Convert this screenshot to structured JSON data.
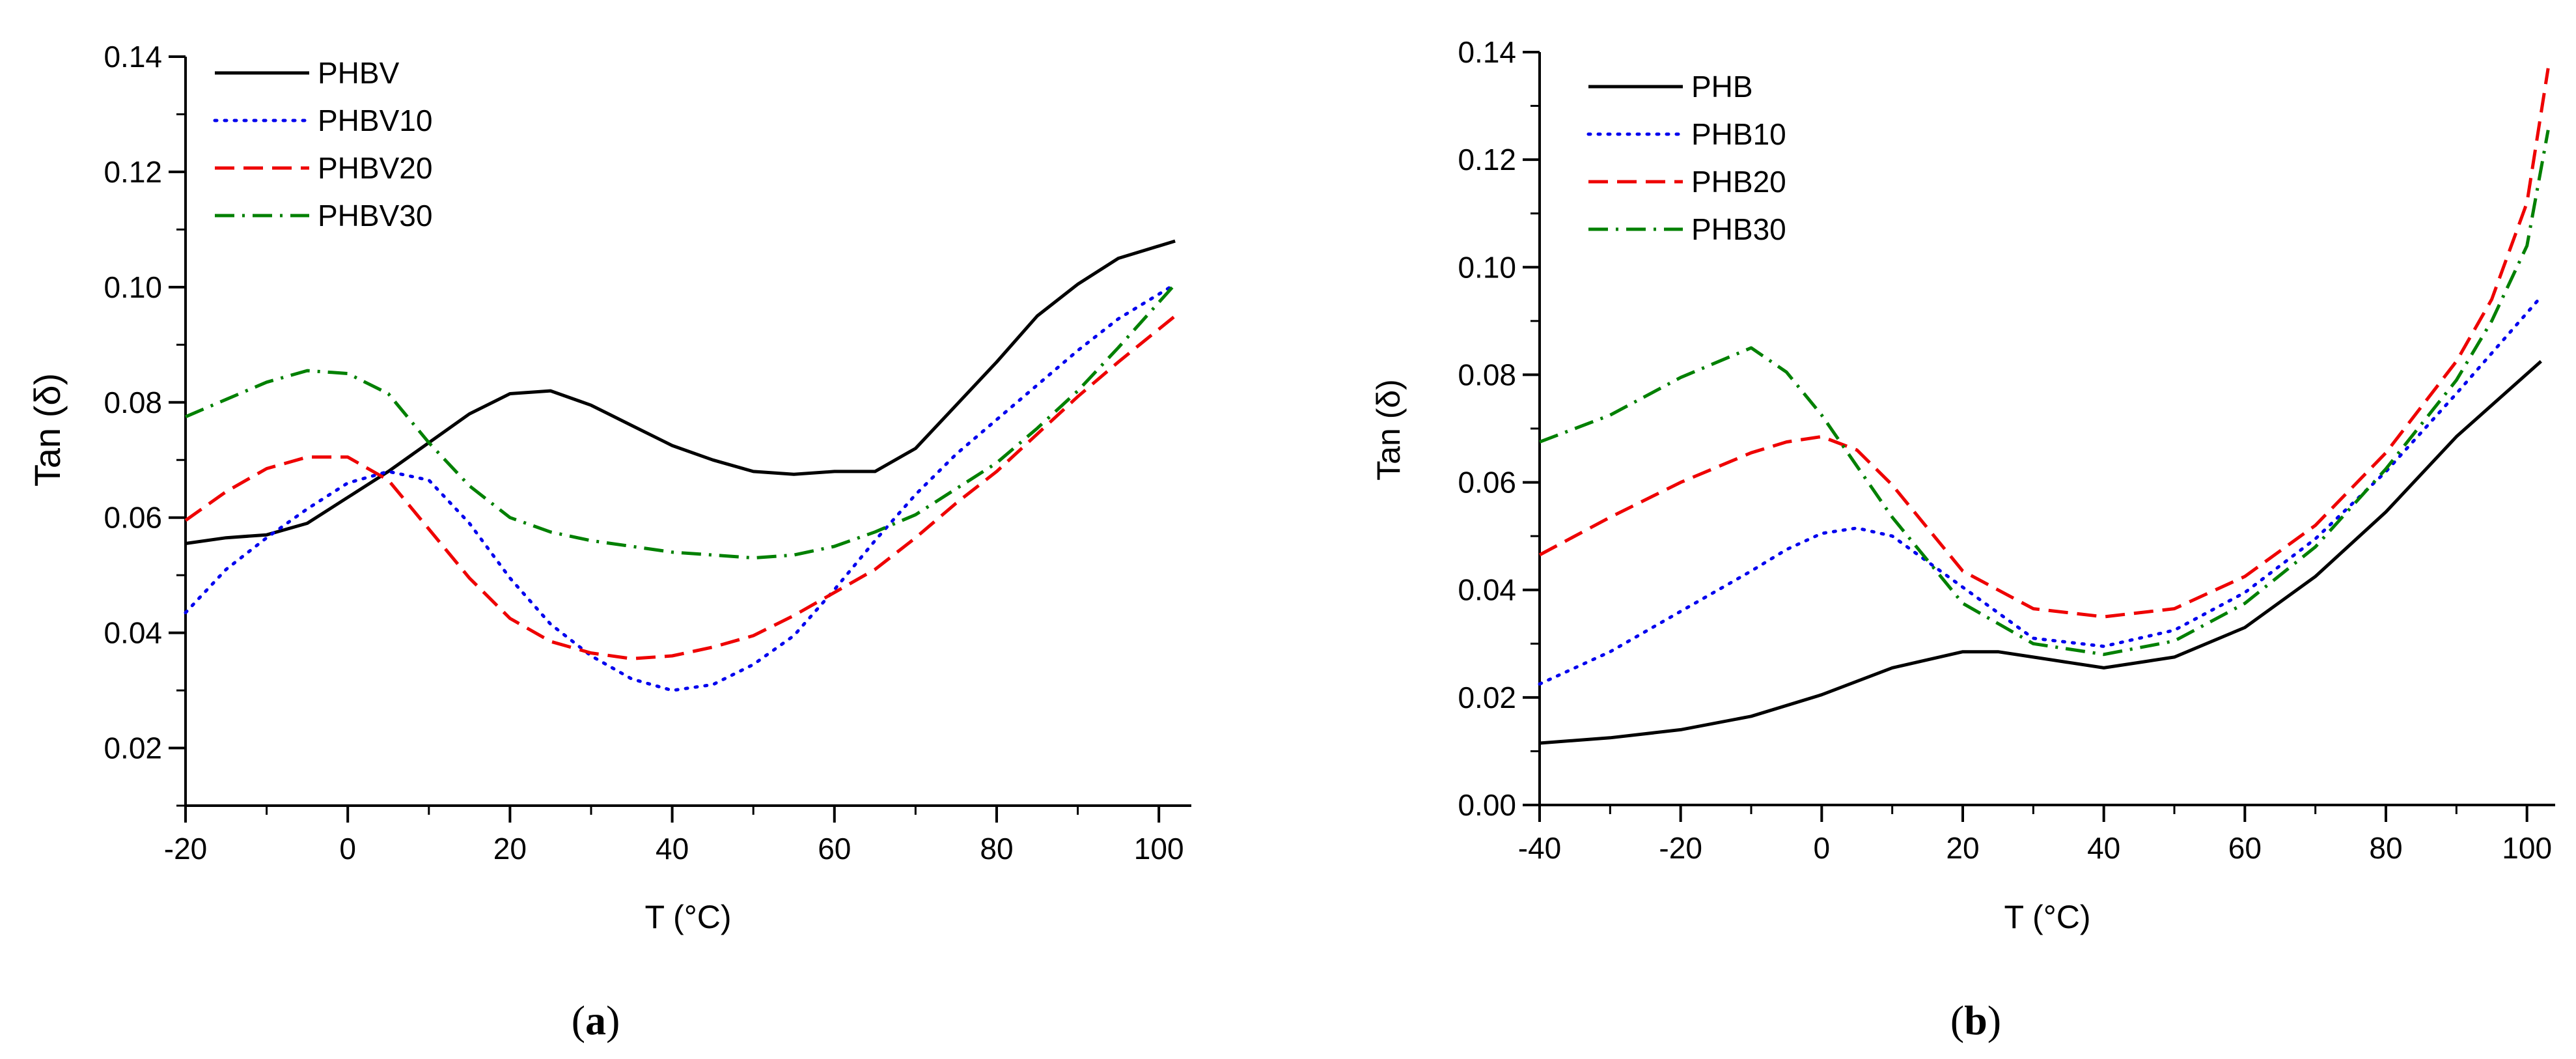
{
  "chart_data": [
    {
      "panel": "a",
      "type": "line",
      "xlabel": "T (°C)",
      "ylabel": "Tan (δ)",
      "xlim": [
        -20,
        104
      ],
      "ylim": [
        0.01,
        0.14
      ],
      "xticks": [
        -20,
        0,
        20,
        40,
        60,
        80,
        100
      ],
      "yticks": [
        0.02,
        0.04,
        0.06,
        0.08,
        0.1,
        0.12,
        0.14
      ],
      "ytick_labels": [
        "0.02",
        "0.04",
        "0.06",
        "0.08",
        "0.10",
        "0.12",
        "0.14"
      ],
      "x_minor": 10,
      "y_minor": 0.01,
      "legend_position": "top-left",
      "caption": "a",
      "series": [
        {
          "name": "PHBV",
          "color": "#000000",
          "style": "solid",
          "x": [
            -20,
            -15,
            -10,
            -5,
            0,
            5,
            10,
            15,
            20,
            25,
            30,
            35,
            40,
            45,
            50,
            55,
            60,
            65,
            70,
            75,
            80,
            85,
            90,
            95,
            102
          ],
          "y": [
            0.0555,
            0.0565,
            0.057,
            0.059,
            0.0635,
            0.068,
            0.073,
            0.078,
            0.0815,
            0.082,
            0.0795,
            0.076,
            0.0725,
            0.07,
            0.068,
            0.0675,
            0.068,
            0.068,
            0.072,
            0.0795,
            0.087,
            0.095,
            0.1005,
            0.105,
            0.108
          ]
        },
        {
          "name": "PHBV10",
          "color": "#0000ee",
          "style": "dotted",
          "x": [
            -20,
            -15,
            -10,
            -5,
            0,
            5,
            10,
            15,
            20,
            25,
            30,
            35,
            40,
            45,
            50,
            55,
            60,
            65,
            70,
            75,
            80,
            85,
            90,
            95,
            102
          ],
          "y": [
            0.0435,
            0.051,
            0.0565,
            0.0615,
            0.066,
            0.068,
            0.0665,
            0.059,
            0.0495,
            0.0415,
            0.036,
            0.032,
            0.03,
            0.031,
            0.0345,
            0.0395,
            0.0475,
            0.056,
            0.064,
            0.071,
            0.077,
            0.083,
            0.089,
            0.0945,
            0.1005
          ]
        },
        {
          "name": "PHBV20",
          "color": "#ee0000",
          "style": "dashed",
          "x": [
            -20,
            -15,
            -10,
            -5,
            0,
            5,
            10,
            15,
            20,
            25,
            30,
            35,
            40,
            45,
            50,
            55,
            60,
            65,
            70,
            75,
            80,
            85,
            90,
            95,
            102
          ],
          "y": [
            0.0595,
            0.0645,
            0.0685,
            0.0705,
            0.0705,
            0.0665,
            0.058,
            0.0495,
            0.0425,
            0.0385,
            0.0365,
            0.0355,
            0.036,
            0.0375,
            0.0395,
            0.043,
            0.047,
            0.051,
            0.0565,
            0.0625,
            0.068,
            0.0745,
            0.081,
            0.087,
            0.095
          ]
        },
        {
          "name": "PHBV30",
          "color": "#008000",
          "style": "dashdot",
          "x": [
            -20,
            -15,
            -10,
            -5,
            0,
            5,
            10,
            15,
            20,
            25,
            30,
            35,
            40,
            45,
            50,
            55,
            60,
            65,
            70,
            75,
            80,
            85,
            90,
            95,
            102
          ],
          "y": [
            0.0775,
            0.0805,
            0.0835,
            0.0855,
            0.085,
            0.0815,
            0.073,
            0.0655,
            0.06,
            0.0575,
            0.056,
            0.055,
            0.054,
            0.0535,
            0.053,
            0.0535,
            0.055,
            0.0575,
            0.0605,
            0.065,
            0.0695,
            0.0755,
            0.082,
            0.0895,
            0.1005
          ]
        }
      ]
    },
    {
      "panel": "b",
      "type": "line",
      "xlabel": "T (°C)",
      "ylabel": "Tan (δ)",
      "xlim": [
        -40,
        104
      ],
      "ylim": [
        0.0,
        0.14
      ],
      "xticks": [
        -40,
        -20,
        0,
        20,
        40,
        60,
        80,
        100
      ],
      "yticks": [
        0.0,
        0.02,
        0.04,
        0.06,
        0.08,
        0.1,
        0.12,
        0.14
      ],
      "ytick_labels": [
        "0.00",
        "0.02",
        "0.04",
        "0.06",
        "0.08",
        "0.10",
        "0.12",
        "0.14"
      ],
      "x_minor": 10,
      "y_minor": 0.01,
      "legend_position": "top-left",
      "caption": "b",
      "series": [
        {
          "name": "PHB",
          "color": "#000000",
          "style": "solid",
          "x": [
            -40,
            -30,
            -20,
            -10,
            0,
            10,
            20,
            25,
            30,
            40,
            50,
            60,
            70,
            80,
            90,
            102
          ],
          "y": [
            0.0115,
            0.0125,
            0.014,
            0.0165,
            0.0205,
            0.0255,
            0.0285,
            0.0285,
            0.0275,
            0.0255,
            0.0275,
            0.033,
            0.0425,
            0.0545,
            0.0685,
            0.0825
          ]
        },
        {
          "name": "PHB10",
          "color": "#0000ee",
          "style": "dotted",
          "x": [
            -40,
            -30,
            -20,
            -10,
            -5,
            0,
            5,
            10,
            20,
            30,
            40,
            50,
            60,
            70,
            80,
            90,
            102
          ],
          "y": [
            0.0225,
            0.0285,
            0.036,
            0.0435,
            0.0475,
            0.0505,
            0.0515,
            0.05,
            0.0405,
            0.031,
            0.0295,
            0.0325,
            0.0395,
            0.0495,
            0.062,
            0.0765,
            0.0945
          ]
        },
        {
          "name": "PHB20",
          "color": "#ee0000",
          "style": "dashed",
          "x": [
            -40,
            -30,
            -20,
            -10,
            -5,
            0,
            5,
            10,
            20,
            30,
            40,
            50,
            60,
            70,
            80,
            90,
            95,
            100,
            103
          ],
          "y": [
            0.0465,
            0.0535,
            0.06,
            0.0655,
            0.0675,
            0.0685,
            0.066,
            0.0595,
            0.0435,
            0.0365,
            0.035,
            0.0365,
            0.0425,
            0.052,
            0.0655,
            0.0825,
            0.094,
            0.112,
            0.137
          ]
        },
        {
          "name": "PHB30",
          "color": "#008000",
          "style": "dashdot",
          "x": [
            -40,
            -30,
            -20,
            -10,
            -5,
            0,
            10,
            20,
            30,
            40,
            50,
            60,
            70,
            80,
            90,
            95,
            100,
            103
          ],
          "y": [
            0.0675,
            0.0725,
            0.0795,
            0.085,
            0.0805,
            0.0725,
            0.0535,
            0.0375,
            0.03,
            0.028,
            0.0305,
            0.0375,
            0.048,
            0.0625,
            0.079,
            0.09,
            0.104,
            0.1255
          ]
        }
      ]
    }
  ]
}
